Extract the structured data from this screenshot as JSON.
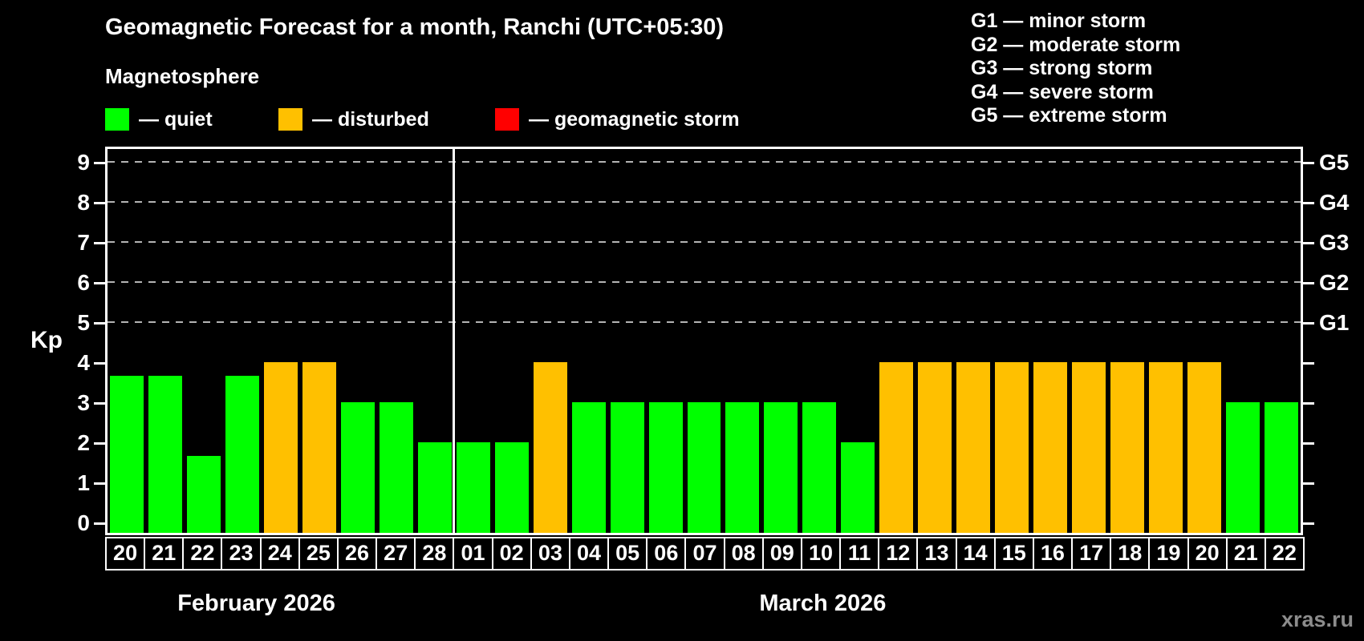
{
  "legend": {
    "title": "Magnetosphere",
    "items": [
      {
        "name": "quiet",
        "label": "— quiet",
        "color": "#00ff00"
      },
      {
        "name": "disturbed",
        "label": "— disturbed",
        "color": "#ffc000"
      },
      {
        "name": "storm",
        "label": "— geomagnetic storm",
        "color": "#ff0000"
      }
    ]
  },
  "storm_scale_legend": {
    "lines": [
      "G1 — minor storm",
      "G2 — moderate storm",
      "G3 — strong storm",
      "G4 — severe storm",
      "G5 — extreme storm"
    ]
  },
  "watermark": "xras.ru",
  "chart_data": {
    "type": "bar",
    "title": "Geomagnetic Forecast for a month, Ranchi (UTC+05:30)",
    "ylabel": "Kp",
    "ylim": [
      -0.33,
      9.37
    ],
    "yticks": [
      0,
      1,
      2,
      3,
      4,
      5,
      6,
      7,
      8,
      9
    ],
    "gridlines_at": [
      5,
      6,
      7,
      8,
      9
    ],
    "grid_style": "dashed horizontal",
    "legend_position": "top-left",
    "right_axis_labels": [
      {
        "value": 5,
        "label": "G1"
      },
      {
        "value": 6,
        "label": "G2"
      },
      {
        "value": 7,
        "label": "G3"
      },
      {
        "value": 8,
        "label": "G4"
      },
      {
        "value": 9,
        "label": "G5"
      }
    ],
    "status_colors": {
      "quiet": "#00ff00",
      "disturbed": "#ffc000",
      "storm": "#ff0000"
    },
    "months": [
      {
        "label": "February 2026",
        "bars": [
          {
            "day": "20",
            "kp": 3.67,
            "status": "quiet"
          },
          {
            "day": "21",
            "kp": 3.67,
            "status": "quiet"
          },
          {
            "day": "22",
            "kp": 1.67,
            "status": "quiet"
          },
          {
            "day": "23",
            "kp": 3.67,
            "status": "quiet"
          },
          {
            "day": "24",
            "kp": 4,
            "status": "disturbed"
          },
          {
            "day": "25",
            "kp": 4,
            "status": "disturbed"
          },
          {
            "day": "26",
            "kp": 3,
            "status": "quiet"
          },
          {
            "day": "27",
            "kp": 3,
            "status": "quiet"
          },
          {
            "day": "28",
            "kp": 2,
            "status": "quiet"
          }
        ]
      },
      {
        "label": "March 2026",
        "bars": [
          {
            "day": "01",
            "kp": 2,
            "status": "quiet"
          },
          {
            "day": "02",
            "kp": 2,
            "status": "quiet"
          },
          {
            "day": "03",
            "kp": 4,
            "status": "disturbed"
          },
          {
            "day": "04",
            "kp": 3,
            "status": "quiet"
          },
          {
            "day": "05",
            "kp": 3,
            "status": "quiet"
          },
          {
            "day": "06",
            "kp": 3,
            "status": "quiet"
          },
          {
            "day": "07",
            "kp": 3,
            "status": "quiet"
          },
          {
            "day": "08",
            "kp": 3,
            "status": "quiet"
          },
          {
            "day": "09",
            "kp": 3,
            "status": "quiet"
          },
          {
            "day": "10",
            "kp": 3,
            "status": "quiet"
          },
          {
            "day": "11",
            "kp": 2,
            "status": "quiet"
          },
          {
            "day": "12",
            "kp": 4,
            "status": "disturbed"
          },
          {
            "day": "13",
            "kp": 4,
            "status": "disturbed"
          },
          {
            "day": "14",
            "kp": 4,
            "status": "disturbed"
          },
          {
            "day": "15",
            "kp": 4,
            "status": "disturbed"
          },
          {
            "day": "16",
            "kp": 4,
            "status": "disturbed"
          },
          {
            "day": "17",
            "kp": 4,
            "status": "disturbed"
          },
          {
            "day": "18",
            "kp": 4,
            "status": "disturbed"
          },
          {
            "day": "19",
            "kp": 4,
            "status": "disturbed"
          },
          {
            "day": "20",
            "kp": 4,
            "status": "disturbed"
          },
          {
            "day": "21",
            "kp": 3,
            "status": "quiet"
          },
          {
            "day": "22",
            "kp": 3,
            "status": "quiet"
          }
        ]
      }
    ]
  }
}
